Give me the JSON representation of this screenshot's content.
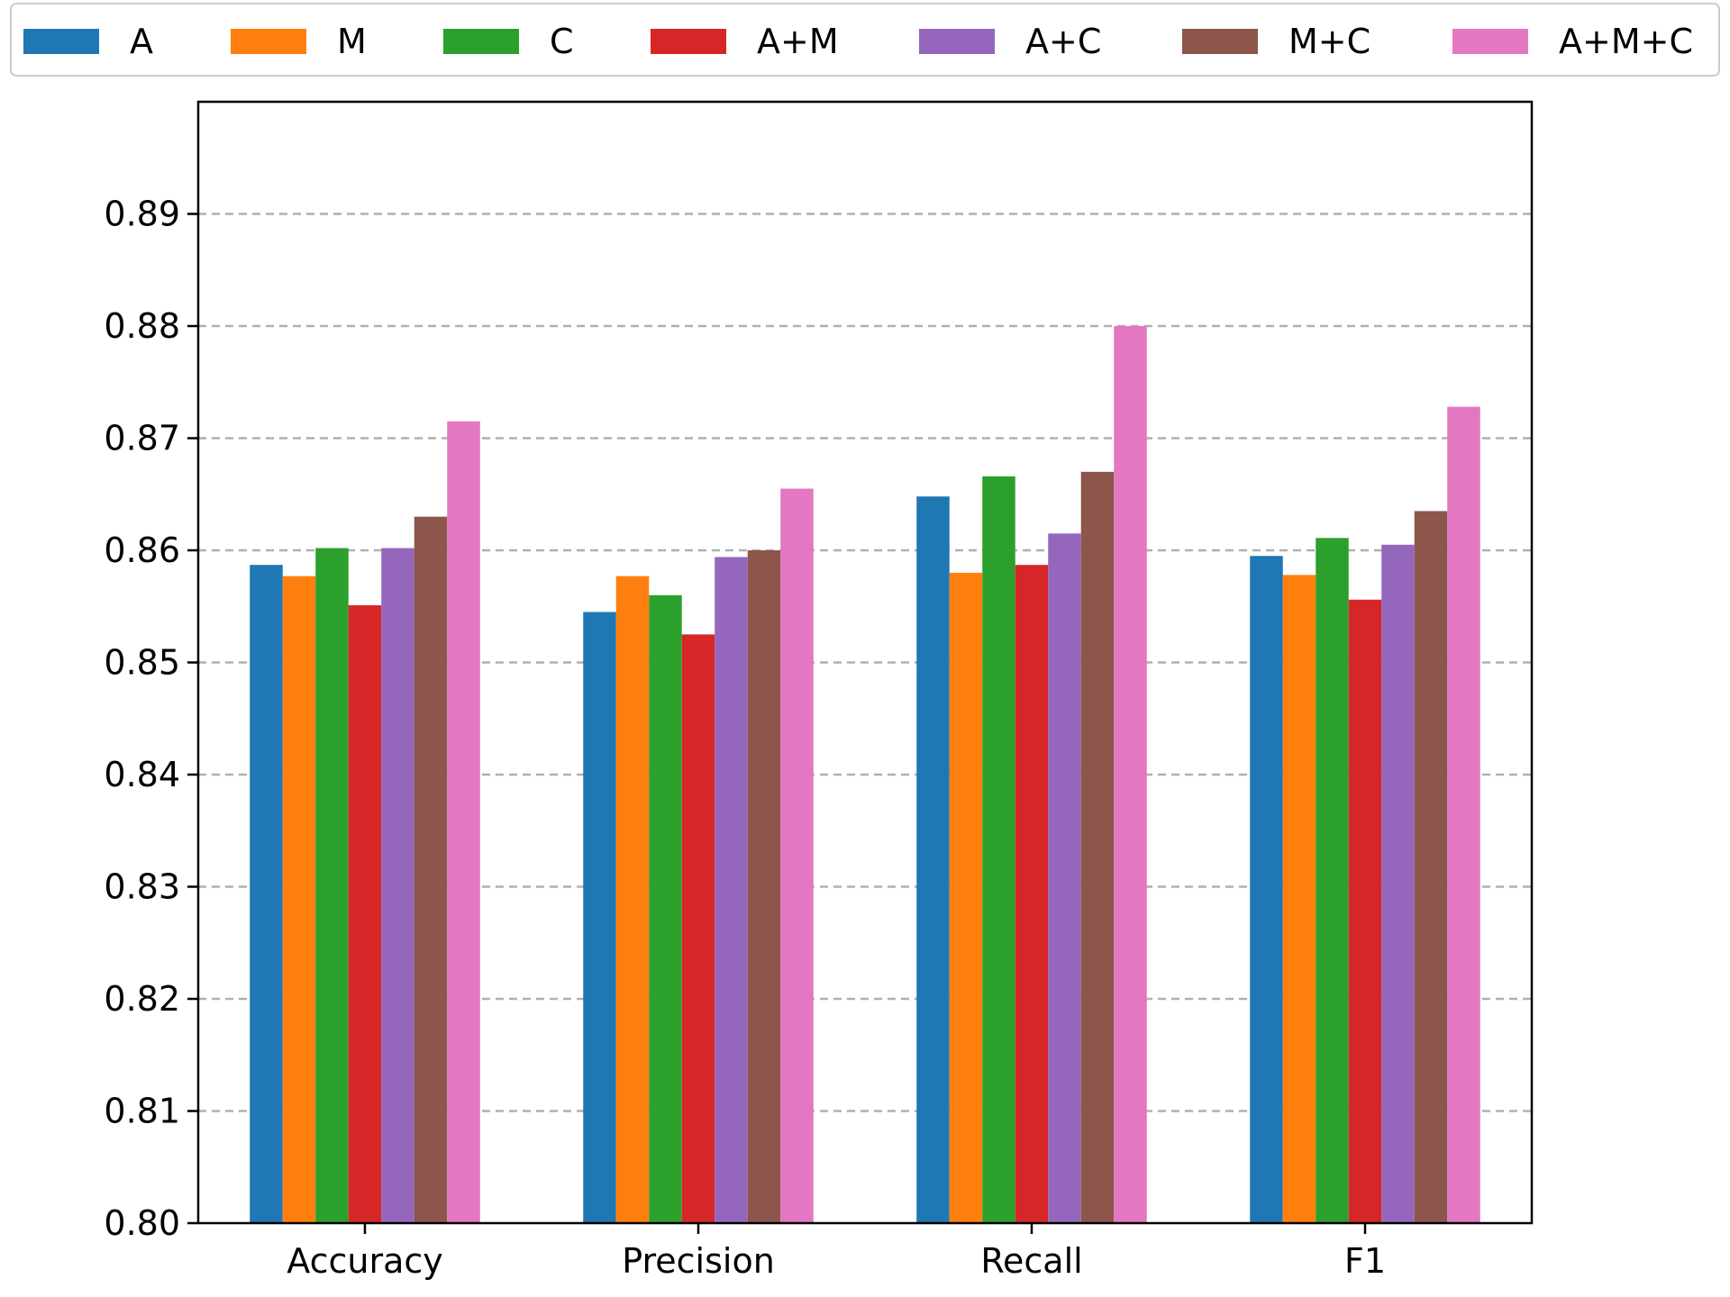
{
  "chart_data": {
    "type": "bar",
    "categories": [
      "Accuracy",
      "Precision",
      "Recall",
      "F1"
    ],
    "series": [
      {
        "name": "A",
        "color": "#1f77b4",
        "values": [
          0.8587,
          0.8545,
          0.8648,
          0.8595
        ]
      },
      {
        "name": "M",
        "color": "#ff7f0e",
        "values": [
          0.8577,
          0.8577,
          0.858,
          0.8578
        ]
      },
      {
        "name": "C",
        "color": "#2ca02c",
        "values": [
          0.8602,
          0.856,
          0.8666,
          0.8611
        ]
      },
      {
        "name": "A+M",
        "color": "#d62728",
        "values": [
          0.8551,
          0.8525,
          0.8587,
          0.8556
        ]
      },
      {
        "name": "A+C",
        "color": "#9467bd",
        "values": [
          0.8602,
          0.8594,
          0.8615,
          0.8605
        ]
      },
      {
        "name": "M+C",
        "color": "#8c564b",
        "values": [
          0.863,
          0.86,
          0.867,
          0.8635
        ]
      },
      {
        "name": "A+M+C",
        "color": "#e377c2",
        "values": [
          0.8715,
          0.8655,
          0.88,
          0.8728
        ]
      }
    ],
    "ylim": [
      0.8,
      0.9
    ],
    "yticks": [
      "0.80",
      "0.81",
      "0.82",
      "0.83",
      "0.84",
      "0.85",
      "0.86",
      "0.87",
      "0.88",
      "0.89"
    ],
    "grid": "horizontal-dashed",
    "legend_position": "top",
    "title": "",
    "xlabel": "",
    "ylabel": ""
  }
}
